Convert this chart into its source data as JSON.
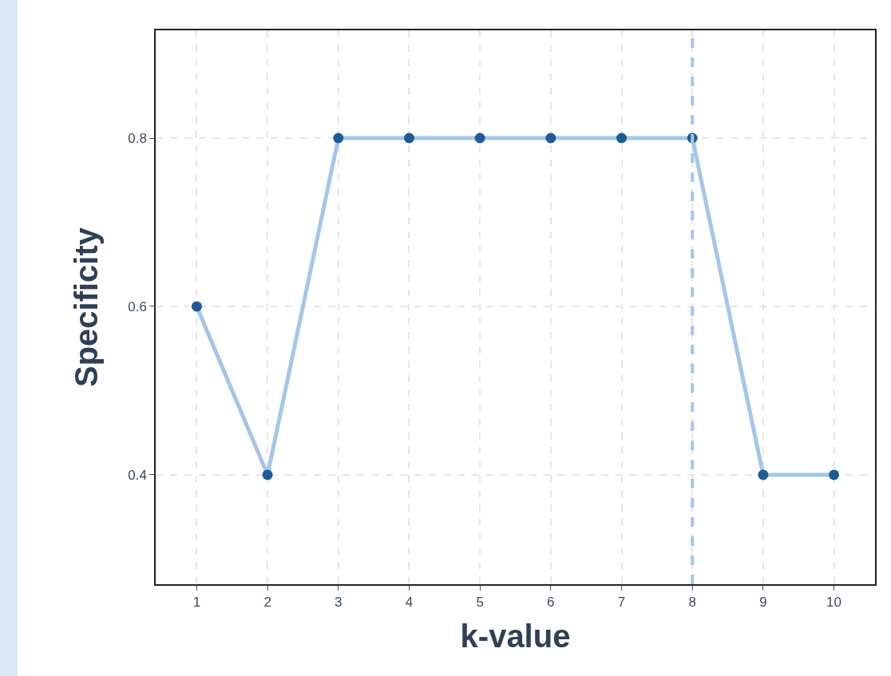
{
  "chart_data": {
    "type": "line",
    "xlabel": "k-value",
    "ylabel": "Specificity",
    "x": [
      1,
      2,
      3,
      4,
      5,
      6,
      7,
      8,
      9,
      10
    ],
    "series": [
      {
        "color": "#a3c6ea",
        "colors": [
          "#1b5b99",
          "#1b5b99",
          "#1b5b99",
          "#1b5b99",
          "#1b5b99",
          "#1b5b99",
          "#1b5b99",
          "#1b5b99",
          "#1b5b99",
          "#1b5b99"
        ],
        "values": [
          0.6,
          0.4,
          0.8,
          0.8,
          0.8,
          0.8,
          0.8,
          0.8,
          0.4,
          0.4
        ]
      }
    ],
    "xlim": [
      0.42,
      10.58
    ],
    "xticks": [
      1,
      2,
      3,
      4,
      5,
      6,
      7,
      8,
      9,
      10
    ],
    "ylim": [
      0.27,
      0.928
    ],
    "yticks": [
      0.4,
      0.6,
      0.8
    ],
    "ref_lines": [
      {
        "axis": "x",
        "value": 8,
        "color": "#a3c6ea",
        "line_style": "dashed"
      }
    ],
    "grid": true,
    "marker": "circle",
    "line_style": "solid"
  }
}
